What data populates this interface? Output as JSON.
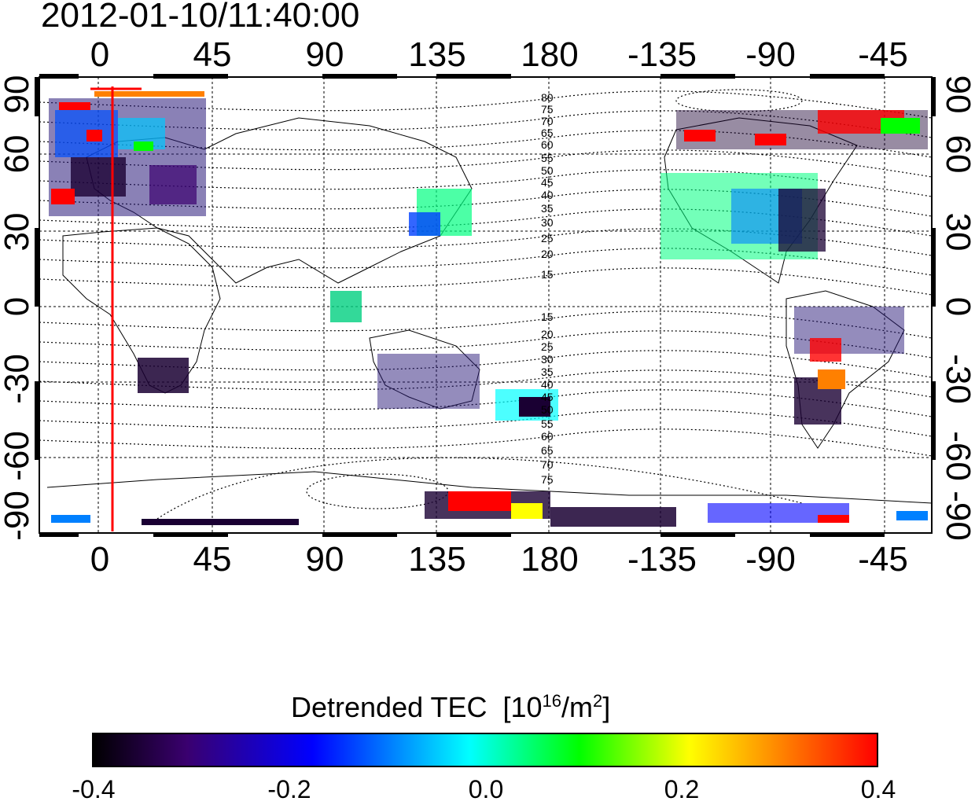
{
  "title": "2012-01-10/11:40:00",
  "map": {
    "projection": "cylindrical",
    "lon_top_ticks": [
      "0",
      "45",
      "90",
      "135",
      "180",
      "-135",
      "-90",
      "-45"
    ],
    "lon_bottom_ticks": [
      "0",
      "45",
      "90",
      "135",
      "180",
      "-135",
      "-90",
      "-45"
    ],
    "lat_left_ticks": [
      "90",
      "60",
      "30",
      "0",
      "-30",
      "-60",
      "-90"
    ],
    "lat_right_ticks": [
      "90",
      "60",
      "30",
      "0",
      "-30",
      "-60",
      "-90"
    ],
    "mag_lat_north_labels": [
      "80",
      "75",
      "70",
      "65",
      "60",
      "55",
      "50",
      "45",
      "40",
      "35",
      "30",
      "25",
      "20",
      "15"
    ],
    "mag_lat_south_labels": [
      "15",
      "20",
      "25",
      "30",
      "35",
      "40",
      "45",
      "50",
      "55",
      "60",
      "65",
      "70",
      "75"
    ],
    "terminator_longitude": 5,
    "colors": {
      "terminator": "#ff0000",
      "coastline": "#000000",
      "contours": "#000000"
    }
  },
  "colorbar": {
    "title": "Detrended TEC",
    "unit_prefix": "[10",
    "unit_exp": "16",
    "unit_mid": "/m",
    "unit_exp2": "2",
    "unit_suffix": "]",
    "ticks": [
      "-0.4",
      "-0.2",
      "0.0",
      "0.2",
      "0.4"
    ],
    "range": [
      -0.4,
      0.4
    ],
    "colors": [
      "#000000",
      "#3a006f",
      "#0000ff",
      "#00ffff",
      "#00ff00",
      "#ffff00",
      "#ff8000",
      "#ff0000"
    ]
  }
}
